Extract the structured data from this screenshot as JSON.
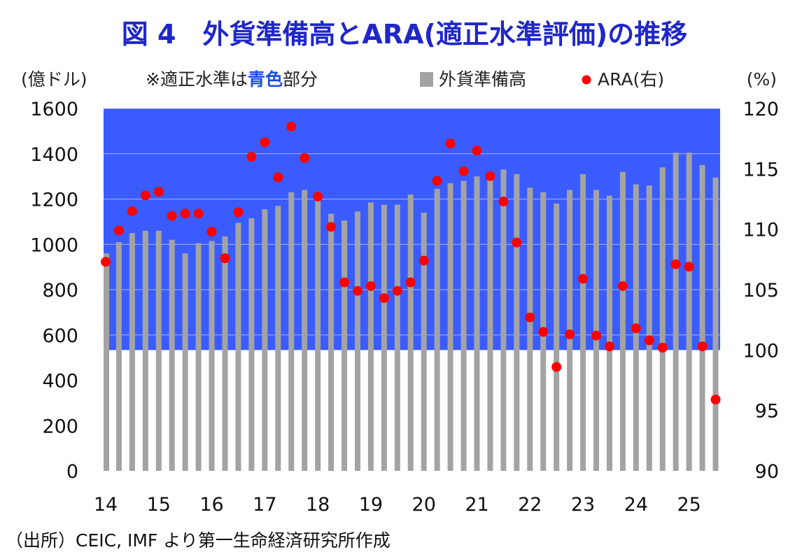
{
  "colors": {
    "title": "#1f27c9",
    "band": "#3a5cff",
    "bar": "#a3a3a3",
    "dot": "#ff0000",
    "blue_word": "#1f4fe0"
  },
  "chart_data": {
    "type": "bar+scatter",
    "title": "図 4　外貨準備高とARA(適正水準評価)の推移",
    "y_left_unit": "(億ドル)",
    "y_right_unit": "(%)",
    "note_prefix": "※適正水準は",
    "note_highlight": "青色",
    "note_suffix": "部分",
    "legend": {
      "bars": "外貨準備高",
      "dots": "ARA(右)"
    },
    "y_left": {
      "min": 0,
      "max": 1600,
      "ticks": [
        "0",
        "200",
        "400",
        "600",
        "800",
        "1000",
        "1200",
        "1400",
        "1600"
      ]
    },
    "y_right": {
      "min": 90,
      "max": 120,
      "ticks": [
        "90",
        "95",
        "100",
        "105",
        "110",
        "115",
        "120"
      ]
    },
    "x_ticks": [
      "14",
      "15",
      "16",
      "17",
      "18",
      "19",
      "20",
      "21",
      "22",
      "23",
      "24",
      "25"
    ],
    "appropriate_range_right": [
      100,
      120
    ],
    "series": [
      {
        "name": "外貨準備高",
        "axis": "left",
        "values": [
          960,
          1010,
          1050,
          1060,
          1060,
          1020,
          960,
          1005,
          1015,
          1035,
          1095,
          1115,
          1155,
          1170,
          1230,
          1240,
          1200,
          1135,
          1105,
          1145,
          1185,
          1175,
          1175,
          1220,
          1140,
          1245,
          1270,
          1280,
          1300,
          1310,
          1330,
          1310,
          1250,
          1230,
          1180,
          1240,
          1310,
          1240,
          1215,
          1320,
          1265,
          1260,
          1340,
          1405,
          1405,
          1350,
          1295
        ]
      },
      {
        "name": "ARA(右)",
        "axis": "right",
        "values": [
          107.3,
          109.9,
          111.5,
          112.8,
          113.1,
          111.1,
          111.3,
          111.3,
          109.8,
          107.6,
          111.4,
          116.0,
          117.2,
          114.3,
          118.5,
          115.9,
          112.7,
          110.2,
          105.6,
          104.9,
          105.3,
          104.3,
          104.9,
          105.6,
          107.4,
          114.0,
          117.1,
          114.8,
          116.5,
          114.4,
          112.3,
          108.9,
          102.7,
          101.5,
          98.6,
          101.3,
          105.9,
          101.2,
          100.3,
          105.3,
          101.8,
          100.8,
          100.2,
          107.1,
          106.9,
          100.3,
          95.9
        ]
      }
    ],
    "source": "（出所）CEIC, IMF より第一生命経済研究所作成"
  }
}
